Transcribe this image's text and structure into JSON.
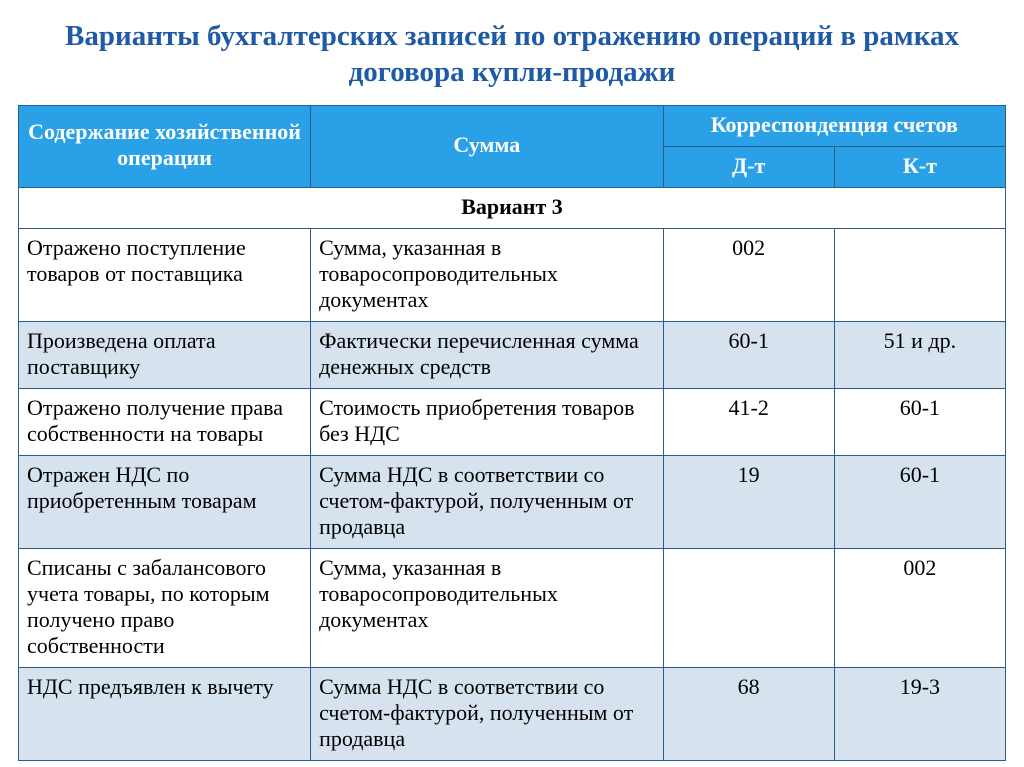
{
  "title": "Варианты бухгалтерских записей по отражению операций в рамках договора купли-продажи",
  "columns": {
    "operation": "Содержание хозяйственной операции",
    "sum": "Сумма",
    "accounts": "Корреспонденция счетов",
    "debit": "Д-т",
    "credit": "К-т"
  },
  "section_label": "Вариант 3",
  "colors": {
    "title_color": "#1f5aa6",
    "header_bg": "#2aa0e6",
    "header_text": "#ffffff",
    "border": "#2b5d8a",
    "row_alt_bg": "#d6e3ef",
    "row_bg": "#ffffff"
  },
  "font_sizes": {
    "title": 29,
    "cell": 22
  },
  "rows": [
    {
      "op": "Отражено поступление товаров от поставщика",
      "sum": "Сумма, указанная в товаросопроводительных документах",
      "dt": "002",
      "kt": ""
    },
    {
      "op": "Произведена оплата поставщику",
      "sum": "Фактически перечисленная сумма денежных средств",
      "dt": "60-1",
      "kt": "51 и др."
    },
    {
      "op": "Отражено получение права собственности на товары",
      "sum": "Стоимость приобретения товаров без НДС",
      "dt": "41-2",
      "kt": "60-1"
    },
    {
      "op": "Отражен НДС по приобретенным товарам",
      "sum": "Сумма НДС в соответствии со счетом-фактурой, полученным от продавца",
      "dt": "19",
      "kt": "60-1"
    },
    {
      "op": "Списаны с забалансового учета товары, по которым получено право собственности",
      "sum": "Сумма, указанная в товаросопроводительных документах",
      "dt": "",
      "kt": "002"
    },
    {
      "op": "НДС предъявлен к вычету",
      "sum": " Сумма НДС в соответствии со счетом-фактурой, полученным от продавца",
      "dt": "68",
      "kt": "19-3"
    }
  ]
}
